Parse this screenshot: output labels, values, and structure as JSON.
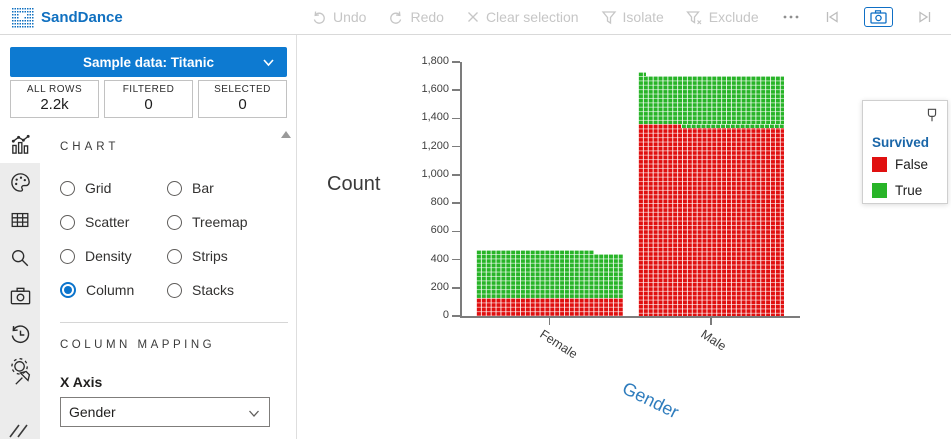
{
  "app": {
    "title": "SandDance"
  },
  "toolbar": {
    "undo": "Undo",
    "redo": "Redo",
    "clear_selection": "Clear selection",
    "isolate": "Isolate",
    "exclude": "Exclude",
    "icons": [
      "more-ellipsis",
      "step-back",
      "camera-snapshot",
      "step-forward",
      "3d-cube"
    ]
  },
  "sidebar": {
    "dataset_button": "Sample data: Titanic",
    "stats": [
      {
        "label": "ALL ROWS",
        "value": "2.2k"
      },
      {
        "label": "FILTERED",
        "value": "0"
      },
      {
        "label": "SELECTED",
        "value": "0"
      }
    ],
    "nav_icons": [
      "column-chart",
      "color-palette",
      "data-table",
      "search",
      "camera",
      "history",
      "pinned-settings",
      "collapsed-item"
    ],
    "chart_section": {
      "title": "CHART",
      "options": [
        "Grid",
        "Bar",
        "Scatter",
        "Treemap",
        "Density",
        "Strips",
        "Column",
        "Stacks"
      ],
      "selected": "Column"
    },
    "mapping_section": {
      "title": "COLUMN MAPPING",
      "x_axis_label": "X Axis",
      "x_axis_value": "Gender"
    }
  },
  "chart_data": {
    "type": "bar",
    "subtype": "stacked-unit-column",
    "title": "",
    "xlabel": "Gender",
    "ylabel": "Count",
    "categories": [
      "Female",
      "Male"
    ],
    "series": [
      {
        "name": "False",
        "color": "#e01010",
        "values": [
          126,
          1364
        ]
      },
      {
        "name": "True",
        "color": "#28b428",
        "values": [
          344,
          367
        ]
      }
    ],
    "ylim": [
      0,
      1800
    ],
    "y_ticks": [
      {
        "label": "0",
        "value": 0
      },
      {
        "label": "200",
        "value": 200
      },
      {
        "label": "400",
        "value": 400
      },
      {
        "label": "600",
        "value": 600
      },
      {
        "label": "800",
        "value": 800
      },
      {
        "label": "1,000",
        "value": 1000
      },
      {
        "label": "1,200",
        "value": 1200
      },
      {
        "label": "1,400",
        "value": 1400
      },
      {
        "label": "1,600",
        "value": 1600
      },
      {
        "label": "1,800",
        "value": 1800
      }
    ],
    "grid": false,
    "legend": {
      "title": "Survived",
      "position": "right"
    }
  }
}
